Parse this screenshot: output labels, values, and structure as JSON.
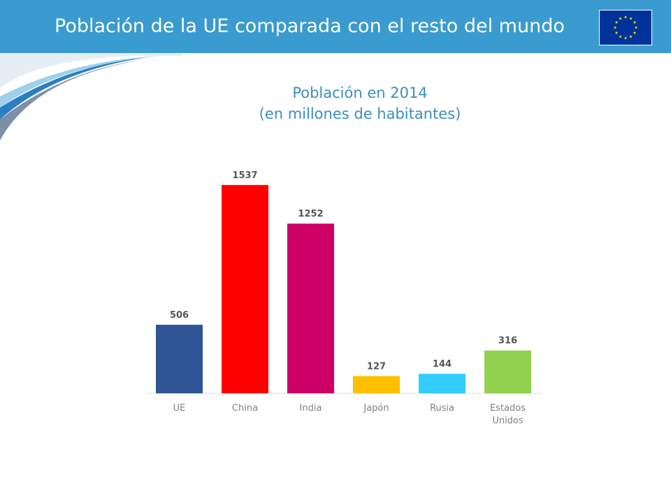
{
  "header": {
    "title": "Población de la UE comparada con el resto del mundo"
  },
  "chart_data": {
    "type": "bar",
    "title": [
      "Población en 2014",
      "(en millones de habitantes)"
    ],
    "categories": [
      [
        "UE"
      ],
      [
        "China"
      ],
      [
        "India"
      ],
      [
        "Japón"
      ],
      [
        "Rusia"
      ],
      [
        "Estados",
        "Unidos"
      ]
    ],
    "values": [
      506,
      1537,
      1252,
      127,
      144,
      316
    ],
    "colors": [
      "#2f5597",
      "#ff0000",
      "#cc0066",
      "#ffc000",
      "#33ccff",
      "#92d050"
    ],
    "grid": false,
    "legend": "none"
  }
}
